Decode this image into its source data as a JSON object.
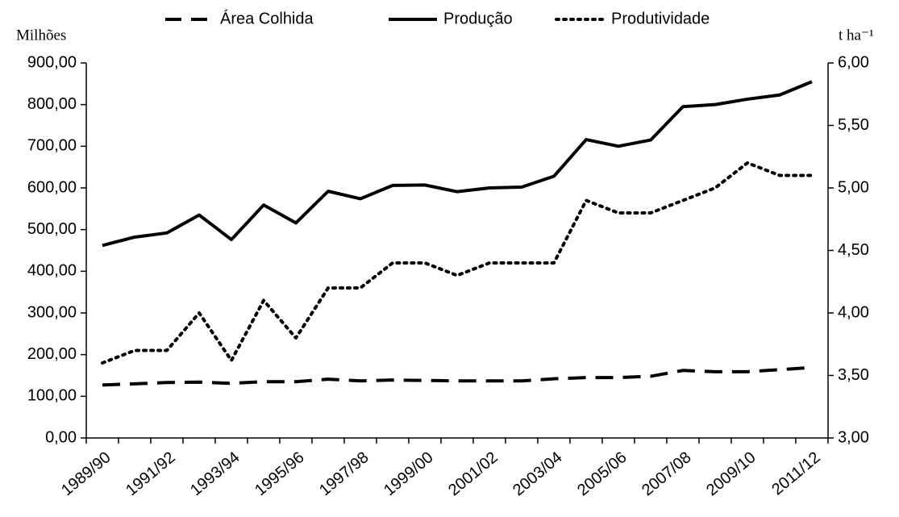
{
  "chart_data": {
    "type": "line",
    "ylabel": "Milhões",
    "y2label": "t ha⁻¹",
    "categories": [
      "1989/90",
      null,
      "1991/92",
      null,
      "1993/94",
      null,
      "1995/96",
      null,
      "1997/98",
      null,
      "1999/00",
      null,
      "2001/02",
      null,
      "2003/04",
      null,
      "2005/06",
      null,
      "2007/08",
      null,
      "2009/10",
      null,
      "2011/12"
    ],
    "series": [
      {
        "name": "Área Colhida",
        "color": "#000000",
        "dash": "dashed",
        "axis": "y",
        "values": [
          127,
          130,
          133,
          134,
          131,
          135,
          135,
          141,
          137,
          139,
          138,
          137,
          137,
          137,
          142,
          145,
          145,
          148,
          162,
          159,
          159,
          164,
          169
        ]
      },
      {
        "name": "Produção",
        "color": "#000000",
        "dash": "solid",
        "axis": "y",
        "values": [
          462,
          482,
          492,
          535,
          476,
          559,
          516,
          592,
          574,
          606,
          607,
          591,
          600,
          602,
          628,
          716,
          700,
          715,
          795,
          800,
          813,
          823,
          855
        ]
      },
      {
        "name": "Produtividade",
        "color": "#000000",
        "dash": "dotted",
        "axis": "y2",
        "values": [
          3.6,
          3.7,
          3.7,
          4.0,
          3.62,
          4.1,
          3.8,
          4.2,
          4.2,
          4.4,
          4.4,
          4.3,
          4.4,
          4.4,
          4.4,
          4.9,
          4.8,
          4.8,
          4.9,
          5.0,
          5.2,
          5.1,
          5.1
        ]
      }
    ],
    "ylim": [
      0,
      900
    ],
    "yticks": [
      {
        "value": 0,
        "label": "0,00"
      },
      {
        "value": 100,
        "label": "100,00"
      },
      {
        "value": 200,
        "label": "200,00"
      },
      {
        "value": 300,
        "label": "300,00"
      },
      {
        "value": 400,
        "label": "400,00"
      },
      {
        "value": 500,
        "label": "500,00"
      },
      {
        "value": 600,
        "label": "600,00"
      },
      {
        "value": 700,
        "label": "700,00"
      },
      {
        "value": 800,
        "label": "800,00"
      },
      {
        "value": 900,
        "label": "900,00"
      }
    ],
    "y2lim": [
      3,
      6
    ],
    "y2ticks": [
      {
        "value": 3,
        "label": "3,00"
      },
      {
        "value": 3.5,
        "label": "3,50"
      },
      {
        "value": 4,
        "label": "4,00"
      },
      {
        "value": 4.5,
        "label": "4,50"
      },
      {
        "value": 5,
        "label": "5,00"
      },
      {
        "value": 5.5,
        "label": "5,50"
      },
      {
        "value": 6,
        "label": "6,00"
      }
    ],
    "grid": false,
    "legend": "top"
  }
}
